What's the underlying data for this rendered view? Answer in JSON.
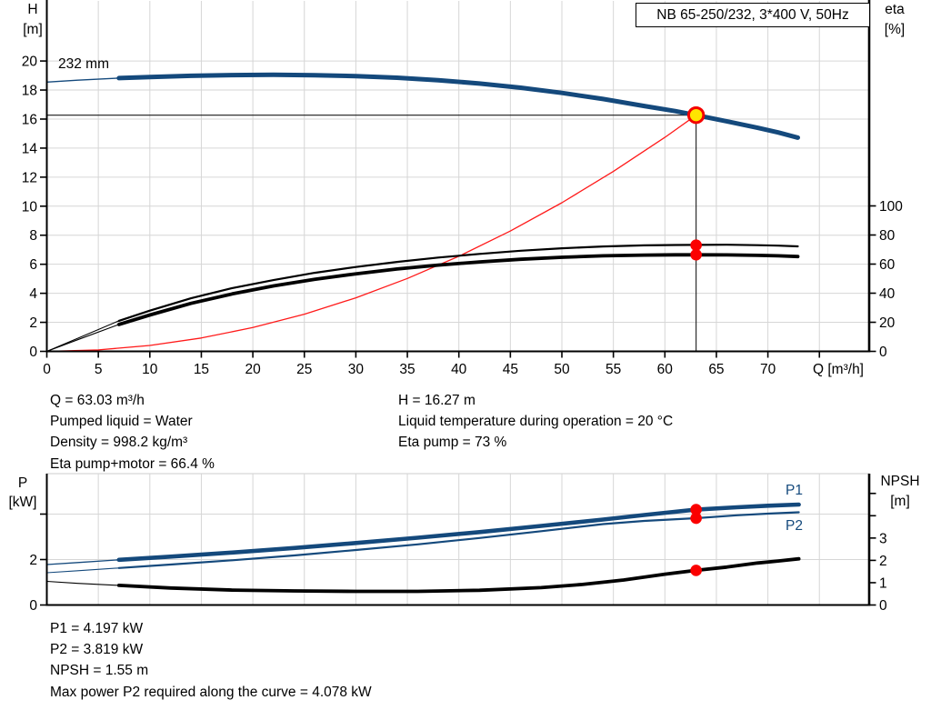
{
  "title_box": {
    "label": "NB 65-250/232, 3*400 V, 50Hz"
  },
  "impeller_label": "232 mm",
  "axis_labels": {
    "h": "H",
    "h_unit": "[m]",
    "eta": "eta",
    "eta_unit": "[%]",
    "q": "Q [m³/h]",
    "p": "P",
    "p_unit": "[kW]",
    "npsh": "NPSH",
    "npsh_unit": "[m]"
  },
  "series_labels": {
    "p1": "P1",
    "p2": "P2"
  },
  "duty_point": {
    "Q": 63.03,
    "H": 16.27,
    "eta_pump": 73,
    "eta_pump_motor": 66.4,
    "P1": 4.197,
    "P2": 3.819,
    "NPSH": 1.55
  },
  "info_top": {
    "left": [
      "Q = 63.03 m³/h",
      "Pumped liquid = Water",
      "Density = 998.2 kg/m³",
      "Eta pump+motor = 66.4 %"
    ],
    "right": [
      "H = 16.27 m",
      "Liquid temperature during operation = 20 °C",
      "Eta pump = 73 %"
    ]
  },
  "info_bottom": [
    "P1 = 4.197 kW",
    "P2 = 3.819 kW",
    "NPSH = 1.55 m",
    "Max power P2 required along the curve = 4.078 kW"
  ],
  "colors": {
    "blue": "#14497c",
    "black": "#000000",
    "red": "#ff1a1a",
    "grid": "#d6d6d6",
    "dot": "#fb0000",
    "duty_fill": "#ffe400",
    "duty_stroke": "#f40000"
  },
  "chart_data": [
    {
      "type": "line",
      "name": "head-efficiency-chart",
      "x_axis": {
        "label": "Q [m³/h]",
        "min": 0,
        "max": 79.8,
        "ticks_all": [
          0,
          5,
          10,
          15,
          20,
          25,
          30,
          35,
          40,
          45,
          50,
          55,
          60,
          65,
          70,
          75
        ],
        "ticks_labeled": [
          0,
          5,
          10,
          15,
          20,
          25,
          30,
          35,
          40,
          45,
          50,
          55,
          60,
          65,
          70
        ]
      },
      "y_left": {
        "label": "H [m]",
        "min": 0,
        "max": 24.2,
        "ticks": [
          0,
          2,
          4,
          6,
          8,
          10,
          12,
          14,
          16,
          18,
          20
        ]
      },
      "y_right": {
        "label": "eta [%]",
        "min": 0,
        "max": 100,
        "ticks": [
          0,
          20,
          40,
          60,
          80,
          100
        ]
      },
      "series": [
        {
          "name": "system-curve",
          "axis": "left",
          "color": "red",
          "width": 1.3,
          "thin_until": 0,
          "points": [
            [
              0,
              0
            ],
            [
              5,
              0.1
            ],
            [
              10,
              0.41
            ],
            [
              15,
              0.92
            ],
            [
              20,
              1.64
            ],
            [
              25,
              2.56
            ],
            [
              30,
              3.69
            ],
            [
              35,
              5.02
            ],
            [
              40,
              6.55
            ],
            [
              45,
              8.29
            ],
            [
              50,
              10.24
            ],
            [
              55,
              12.39
            ],
            [
              60,
              14.74
            ],
            [
              63.03,
              16.27
            ]
          ]
        },
        {
          "name": "eta-pump",
          "axis": "right",
          "color": "black",
          "width": 2.2,
          "thin_until": 7,
          "points": [
            [
              0,
              0
            ],
            [
              3,
              9
            ],
            [
              7,
              21
            ],
            [
              10,
              28
            ],
            [
              14,
              36.5
            ],
            [
              18,
              43.5
            ],
            [
              22,
              49
            ],
            [
              26,
              54
            ],
            [
              30,
              58
            ],
            [
              34,
              61.5
            ],
            [
              38,
              64.5
            ],
            [
              42,
              67
            ],
            [
              46,
              69.2
            ],
            [
              50,
              70.9
            ],
            [
              54,
              72.1
            ],
            [
              58,
              72.9
            ],
            [
              61,
              73.1
            ],
            [
              63.03,
              73.2
            ],
            [
              66,
              73.3
            ],
            [
              69,
              73.0
            ],
            [
              71,
              72.7
            ],
            [
              72.9,
              72.2
            ]
          ]
        },
        {
          "name": "eta-pump-motor",
          "axis": "right",
          "color": "black",
          "width": 3.8,
          "thin_until": 7,
          "points": [
            [
              0,
              0
            ],
            [
              3,
              8
            ],
            [
              7,
              18.5
            ],
            [
              10,
              25
            ],
            [
              14,
              33
            ],
            [
              18,
              39.5
            ],
            [
              22,
              45
            ],
            [
              26,
              49.5
            ],
            [
              30,
              53.3
            ],
            [
              34,
              56.6
            ],
            [
              38,
              59.3
            ],
            [
              42,
              61.5
            ],
            [
              46,
              63.3
            ],
            [
              50,
              64.7
            ],
            [
              54,
              65.7
            ],
            [
              58,
              66.2
            ],
            [
              61,
              66.4
            ],
            [
              63.03,
              66.4
            ],
            [
              66,
              66.3
            ],
            [
              69,
              66.0
            ],
            [
              71,
              65.7
            ],
            [
              72.9,
              65.2
            ]
          ]
        },
        {
          "name": "head-curve-232mm",
          "axis": "left",
          "color": "blue",
          "width": 5,
          "thin_until": 7,
          "points": [
            [
              0,
              18.55
            ],
            [
              3,
              18.68
            ],
            [
              7,
              18.82
            ],
            [
              10,
              18.9
            ],
            [
              14,
              18.98
            ],
            [
              18,
              19.03
            ],
            [
              22,
              19.05
            ],
            [
              26,
              19.02
            ],
            [
              30,
              18.96
            ],
            [
              34,
              18.85
            ],
            [
              38,
              18.68
            ],
            [
              42,
              18.45
            ],
            [
              46,
              18.16
            ],
            [
              50,
              17.8
            ],
            [
              54,
              17.38
            ],
            [
              58,
              16.9
            ],
            [
              61,
              16.55
            ],
            [
              63.03,
              16.27
            ],
            [
              66,
              15.85
            ],
            [
              69,
              15.4
            ],
            [
              71,
              15.08
            ],
            [
              72.9,
              14.72
            ]
          ]
        }
      ]
    },
    {
      "type": "line",
      "name": "power-npsh-chart",
      "x_axis": {
        "min": 0,
        "max": 79.8,
        "ticks_all": [],
        "ticks_labeled": []
      },
      "y_left": {
        "label": "P [kW]",
        "min": 0,
        "max": 5.8,
        "ticks_all": [
          0,
          2,
          4
        ],
        "ticks_labeled": [
          0,
          2
        ]
      },
      "y_right": {
        "label": "NPSH [m]",
        "min": 0,
        "max": 5.9,
        "ticks_all": [
          0,
          1,
          2,
          3,
          4,
          5
        ],
        "ticks_labeled": [
          0,
          1,
          2,
          3
        ]
      },
      "series": [
        {
          "name": "npsh-curve",
          "axis": "right",
          "color": "black",
          "width": 3.8,
          "thin_until": 7,
          "points": [
            [
              0,
              1.06
            ],
            [
              3,
              0.97
            ],
            [
              7,
              0.88
            ],
            [
              12,
              0.76
            ],
            [
              18,
              0.67
            ],
            [
              24,
              0.63
            ],
            [
              30,
              0.61
            ],
            [
              36,
              0.61
            ],
            [
              42,
              0.66
            ],
            [
              48,
              0.78
            ],
            [
              52,
              0.92
            ],
            [
              56,
              1.12
            ],
            [
              60,
              1.38
            ],
            [
              63.03,
              1.55
            ],
            [
              66,
              1.7
            ],
            [
              69,
              1.88
            ],
            [
              71,
              1.97
            ],
            [
              73,
              2.07
            ]
          ]
        },
        {
          "name": "p2-curve",
          "axis": "left",
          "color": "blue",
          "width": 2.2,
          "thin_until": 7,
          "points": [
            [
              0,
              1.42
            ],
            [
              3,
              1.51
            ],
            [
              7,
              1.63
            ],
            [
              12,
              1.78
            ],
            [
              18,
              1.97
            ],
            [
              24,
              2.18
            ],
            [
              30,
              2.42
            ],
            [
              36,
              2.67
            ],
            [
              42,
              2.95
            ],
            [
              48,
              3.25
            ],
            [
              54,
              3.56
            ],
            [
              58,
              3.7
            ],
            [
              63.03,
              3.819
            ],
            [
              67,
              3.95
            ],
            [
              70,
              4.02
            ],
            [
              73,
              4.078
            ]
          ]
        },
        {
          "name": "p1-curve",
          "axis": "left",
          "color": "blue",
          "width": 4.6,
          "thin_until": 7,
          "points": [
            [
              0,
              1.78
            ],
            [
              3,
              1.87
            ],
            [
              7,
              1.99
            ],
            [
              12,
              2.13
            ],
            [
              18,
              2.31
            ],
            [
              24,
              2.51
            ],
            [
              30,
              2.73
            ],
            [
              36,
              2.96
            ],
            [
              42,
              3.21
            ],
            [
              48,
              3.48
            ],
            [
              54,
              3.76
            ],
            [
              58,
              3.96
            ],
            [
              63.03,
              4.197
            ],
            [
              67,
              4.3
            ],
            [
              70,
              4.37
            ],
            [
              73,
              4.42
            ]
          ]
        }
      ]
    }
  ]
}
